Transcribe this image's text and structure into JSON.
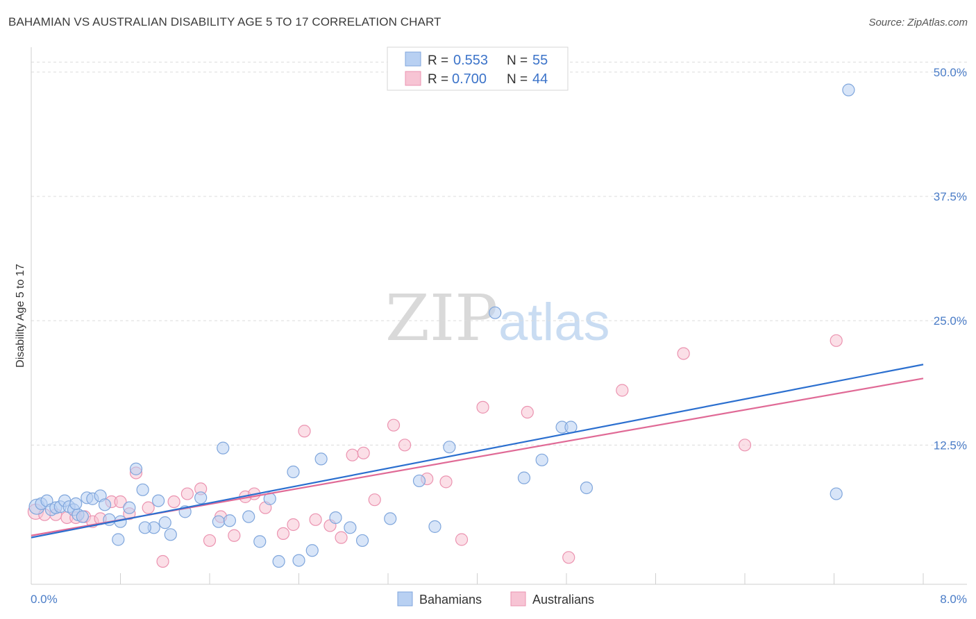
{
  "title": "BAHAMIAN VS AUSTRALIAN DISABILITY AGE 5 TO 17 CORRELATION CHART",
  "source": "Source: ZipAtlas.com",
  "watermark": {
    "zip": "ZIP",
    "atlas": "atlas"
  },
  "colors": {
    "blue_fill": "#b8d0f2",
    "blue_stroke": "#7fa6dc",
    "blue_line": "#2b6fcf",
    "pink_fill": "#f7c4d4",
    "pink_stroke": "#eb93b0",
    "pink_line": "#e06a96",
    "grid": "#dcdcdc",
    "tick_text": "#4a7cc7"
  },
  "legend": {
    "rows": [
      {
        "r_label": "R =",
        "r_value": "0.553",
        "n_label": "N =",
        "n_value": "55"
      },
      {
        "r_label": "R =",
        "r_value": "0.700",
        "n_label": "N =",
        "n_value": "44"
      }
    ]
  },
  "chart_data": {
    "type": "scatter",
    "title": "BAHAMIAN VS AUSTRALIAN DISABILITY AGE 5 TO 17 CORRELATION CHART",
    "xlabel": "",
    "ylabel": "Disability Age 5 to 17",
    "xlim": [
      0,
      8.0
    ],
    "ylim": [
      -1.5,
      52.5
    ],
    "x_tick_labels": [
      "0.0%",
      "8.0%"
    ],
    "y_ticks": [
      12.5,
      25.0,
      37.5,
      50.0
    ],
    "y_tick_labels": [
      "12.5%",
      "25.0%",
      "37.5%",
      "50.0%"
    ],
    "grid": true,
    "legend_position": "bottom-center",
    "series": [
      {
        "name": "Bahamians",
        "color": "blue",
        "trend": {
          "x": [
            0,
            8.0
          ],
          "y": [
            3.2,
            20.6
          ]
        },
        "points": [
          [
            0.05,
            6.3
          ],
          [
            0.09,
            6.6
          ],
          [
            0.14,
            6.9
          ],
          [
            0.18,
            6.0
          ],
          [
            0.22,
            6.2
          ],
          [
            0.26,
            6.3
          ],
          [
            0.3,
            6.9
          ],
          [
            0.34,
            6.3
          ],
          [
            0.38,
            6.0
          ],
          [
            0.42,
            5.5
          ],
          [
            0.46,
            5.3
          ],
          [
            0.5,
            7.2
          ],
          [
            0.55,
            7.1
          ],
          [
            0.62,
            7.4
          ],
          [
            0.66,
            6.5
          ],
          [
            0.7,
            5.0
          ],
          [
            0.78,
            3.0
          ],
          [
            0.8,
            4.8
          ],
          [
            0.88,
            6.2
          ],
          [
            0.94,
            10.1
          ],
          [
            1.0,
            8.0
          ],
          [
            1.1,
            4.2
          ],
          [
            1.14,
            6.9
          ],
          [
            1.25,
            3.5
          ],
          [
            1.38,
            5.8
          ],
          [
            1.52,
            7.2
          ],
          [
            1.68,
            4.8
          ],
          [
            1.78,
            4.9
          ],
          [
            1.95,
            5.3
          ],
          [
            2.05,
            2.8
          ],
          [
            2.14,
            7.1
          ],
          [
            2.22,
            0.8
          ],
          [
            2.35,
            9.8
          ],
          [
            2.4,
            0.9
          ],
          [
            2.52,
            1.9
          ],
          [
            2.6,
            11.1
          ],
          [
            2.73,
            5.2
          ],
          [
            2.86,
            4.2
          ],
          [
            2.97,
            2.9
          ],
          [
            3.22,
            5.1
          ],
          [
            3.48,
            8.9
          ],
          [
            3.62,
            4.3
          ],
          [
            3.75,
            12.3
          ],
          [
            4.16,
            25.8
          ],
          [
            4.42,
            9.2
          ],
          [
            4.58,
            11.0
          ],
          [
            4.76,
            14.3
          ],
          [
            4.84,
            14.3
          ],
          [
            4.98,
            8.2
          ],
          [
            7.22,
            7.6
          ],
          [
            7.33,
            48.2
          ],
          [
            1.2,
            4.7
          ],
          [
            1.02,
            4.2
          ],
          [
            1.72,
            12.2
          ],
          [
            0.4,
            6.6
          ]
        ]
      },
      {
        "name": "Australians",
        "color": "pink",
        "trend": {
          "x": [
            0,
            8.0
          ],
          "y": [
            3.4,
            19.2
          ]
        },
        "points": [
          [
            0.04,
            5.8
          ],
          [
            0.12,
            5.5
          ],
          [
            0.22,
            5.5
          ],
          [
            0.32,
            5.2
          ],
          [
            0.4,
            5.2
          ],
          [
            0.48,
            5.3
          ],
          [
            0.55,
            4.8
          ],
          [
            0.62,
            5.1
          ],
          [
            0.72,
            6.8
          ],
          [
            0.8,
            6.8
          ],
          [
            0.88,
            5.6
          ],
          [
            0.94,
            9.7
          ],
          [
            1.05,
            6.2
          ],
          [
            1.18,
            0.8
          ],
          [
            1.28,
            6.8
          ],
          [
            1.4,
            7.6
          ],
          [
            1.52,
            8.1
          ],
          [
            1.6,
            2.9
          ],
          [
            1.7,
            5.3
          ],
          [
            1.82,
            3.4
          ],
          [
            1.92,
            7.3
          ],
          [
            2.0,
            7.6
          ],
          [
            2.1,
            6.2
          ],
          [
            2.26,
            3.6
          ],
          [
            2.35,
            4.5
          ],
          [
            2.45,
            13.9
          ],
          [
            2.55,
            5.0
          ],
          [
            2.68,
            4.4
          ],
          [
            2.78,
            3.2
          ],
          [
            2.88,
            11.5
          ],
          [
            2.98,
            11.7
          ],
          [
            3.08,
            7.0
          ],
          [
            3.25,
            14.5
          ],
          [
            3.35,
            12.5
          ],
          [
            3.55,
            9.1
          ],
          [
            3.72,
            8.8
          ],
          [
            3.86,
            3.0
          ],
          [
            4.05,
            16.3
          ],
          [
            4.45,
            15.8
          ],
          [
            4.82,
            1.2
          ],
          [
            5.3,
            18.0
          ],
          [
            5.85,
            21.7
          ],
          [
            6.4,
            12.5
          ],
          [
            7.22,
            23.0
          ]
        ]
      }
    ]
  }
}
